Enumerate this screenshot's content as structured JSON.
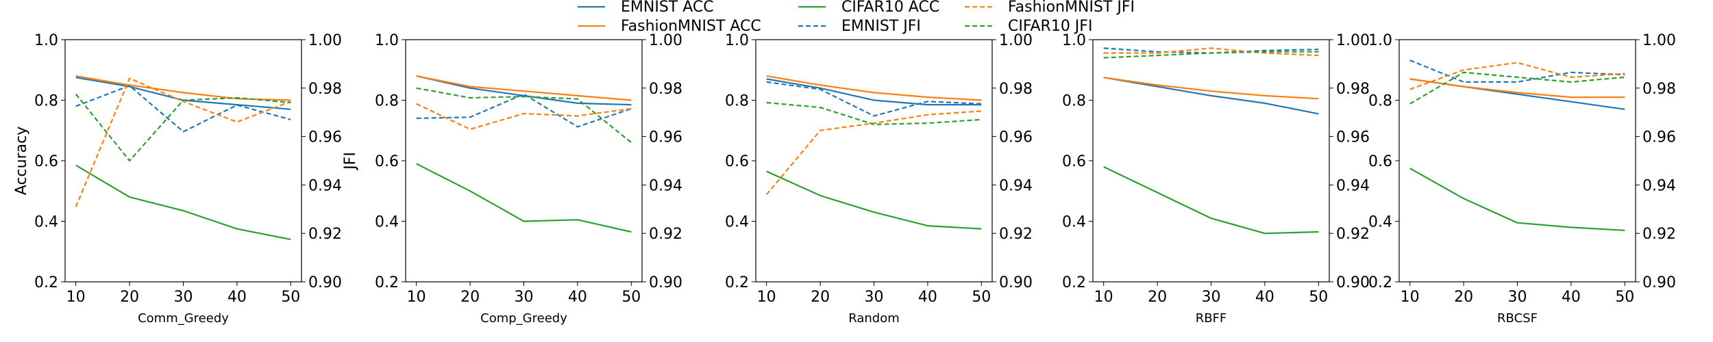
{
  "chart_data": {
    "type": "line",
    "legend": {
      "placement": "top-center",
      "columns": [
        [
          "s0",
          "s1"
        ],
        [
          "s2",
          "s3"
        ],
        [
          "s4",
          "s5"
        ]
      ]
    },
    "colors": {
      "EMNIST": "#1f77b4",
      "FashionMNIST": "#ff7f0e",
      "CIFAR10": "#2ca02c"
    },
    "x": [
      10,
      20,
      30,
      40,
      50
    ],
    "ylabel_left": "Accuracy",
    "ylabel_right": "JFI",
    "ylim_left": [
      0.2,
      1.0
    ],
    "ylim_right": [
      0.9,
      1.0
    ],
    "yticks_left": [
      "0.2",
      "0.4",
      "0.6",
      "0.8",
      "1.0"
    ],
    "yticks_right": [
      "0.90",
      "0.92",
      "0.94",
      "0.96",
      "0.98",
      "1.00"
    ],
    "xlim": [
      8,
      52
    ],
    "grid": false,
    "series_meta": {
      "s0": {
        "name": "EMNIST ACC",
        "color": "#1f77b4",
        "dash": false,
        "axis": "left"
      },
      "s1": {
        "name": "FashionMNIST ACC",
        "color": "#ff7f0e",
        "dash": false,
        "axis": "left"
      },
      "s2": {
        "name": "CIFAR10 ACC",
        "color": "#2ca02c",
        "dash": false,
        "axis": "left"
      },
      "s3": {
        "name": "EMNIST JFI",
        "color": "#1f77b4",
        "dash": true,
        "axis": "right"
      },
      "s4": {
        "name": "FashionMNIST JFI",
        "color": "#ff7f0e",
        "dash": true,
        "axis": "right"
      },
      "s5": {
        "name": "CIFAR10 JFI",
        "color": "#2ca02c",
        "dash": true,
        "axis": "right"
      }
    },
    "panels": [
      {
        "xlabel": "Comm_Greedy",
        "series": {
          "s0": [
            0.875,
            0.845,
            0.8,
            0.785,
            0.77
          ],
          "s1": [
            0.88,
            0.85,
            0.825,
            0.805,
            0.8
          ],
          "s2": [
            0.585,
            0.48,
            0.435,
            0.375,
            0.34
          ],
          "s3": [
            0.9725,
            0.981,
            0.962,
            0.973,
            0.967
          ],
          "s4": [
            0.931,
            0.984,
            0.9745,
            0.966,
            0.9745
          ],
          "s5": [
            0.9775,
            0.95,
            0.975,
            0.976,
            0.974
          ]
        }
      },
      {
        "xlabel": "Comp_Greedy",
        "series": {
          "s0": [
            0.88,
            0.84,
            0.815,
            0.79,
            0.785
          ],
          "s1": [
            0.88,
            0.845,
            0.83,
            0.815,
            0.8
          ],
          "s2": [
            0.59,
            0.5,
            0.4,
            0.405,
            0.365
          ],
          "s3": [
            0.9675,
            0.968,
            0.9775,
            0.964,
            0.9715
          ],
          "s4": [
            0.9735,
            0.963,
            0.9695,
            0.9685,
            0.9715
          ],
          "s5": [
            0.98,
            0.976,
            0.9765,
            0.9755,
            0.9575
          ]
        }
      },
      {
        "xlabel": "Random",
        "series": {
          "s0": [
            0.87,
            0.84,
            0.8,
            0.785,
            0.785
          ],
          "s1": [
            0.88,
            0.85,
            0.825,
            0.81,
            0.8
          ],
          "s2": [
            0.565,
            0.485,
            0.43,
            0.385,
            0.375
          ],
          "s3": [
            0.9825,
            0.9795,
            0.9685,
            0.9745,
            0.9735
          ],
          "s4": [
            0.936,
            0.9625,
            0.9655,
            0.969,
            0.9705
          ],
          "s5": [
            0.974,
            0.972,
            0.965,
            0.9655,
            0.967
          ]
        }
      },
      {
        "xlabel": "RBFF",
        "series": {
          "s0": [
            0.875,
            0.845,
            0.815,
            0.79,
            0.755
          ],
          "s1": [
            0.875,
            0.85,
            0.83,
            0.815,
            0.805
          ],
          "s2": [
            0.58,
            0.495,
            0.41,
            0.36,
            0.365
          ],
          "s3": [
            0.9965,
            0.995,
            0.9945,
            0.9955,
            0.996
          ],
          "s4": [
            0.9945,
            0.9945,
            0.9965,
            0.9945,
            0.9935
          ],
          "s5": [
            0.9925,
            0.9935,
            0.9945,
            0.995,
            0.995
          ]
        }
      },
      {
        "xlabel": "RBCSF",
        "series": {
          "s0": [
            0.87,
            0.845,
            0.82,
            0.795,
            0.77
          ],
          "s1": [
            0.87,
            0.845,
            0.825,
            0.81,
            0.81
          ],
          "s2": [
            0.575,
            0.475,
            0.395,
            0.38,
            0.37
          ],
          "s3": [
            0.9915,
            0.9825,
            0.9825,
            0.9865,
            0.9855
          ],
          "s4": [
            0.9795,
            0.9875,
            0.9905,
            0.9845,
            0.986
          ],
          "s5": [
            0.9735,
            0.9865,
            0.9845,
            0.9825,
            0.9845
          ]
        }
      }
    ]
  }
}
